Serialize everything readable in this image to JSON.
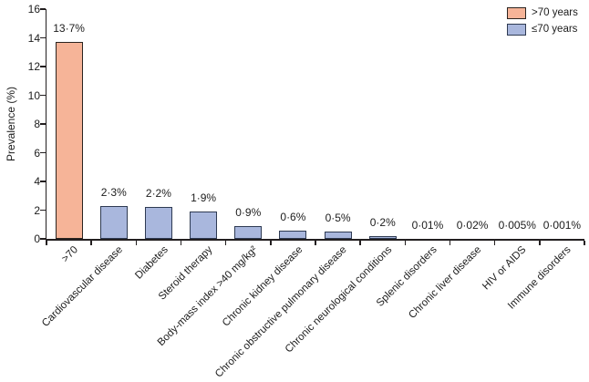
{
  "chart_data": {
    "type": "bar",
    "title": "",
    "xlabel": "",
    "ylabel": "Prevalence (%)",
    "ylim": [
      0,
      16
    ],
    "yticks": [
      0,
      2,
      4,
      6,
      8,
      10,
      12,
      14,
      16
    ],
    "grid": false,
    "legend_position": "top-right",
    "background": "#ffffff",
    "axis_color": "#231f20",
    "text_color": "#1c1c1c",
    "categories": [
      ">70",
      "Cardiovascular disease",
      "Diabetes",
      "Steroid therapy",
      "Body-mass index >40 mg/kg²",
      "Chronic kidney disease",
      "Chronic obstructive pulmonary disease",
      "Chronic neurological conditions",
      "Splenic disorders",
      "Chronic liver disease",
      "HIV or AIDS",
      "Immune disorders"
    ],
    "values": [
      13.7,
      2.3,
      2.2,
      1.9,
      0.9,
      0.6,
      0.5,
      0.2,
      0.01,
      0.02,
      0.005,
      0.001
    ],
    "bar_labels": [
      "13·7%",
      "2·3%",
      "2·2%",
      "1·9%",
      "0·9%",
      "0·6%",
      "0·5%",
      "0·2%",
      "0·01%",
      "0·02%",
      "0·005%",
      "0·001%"
    ],
    "series_index": [
      0,
      1,
      1,
      1,
      1,
      1,
      1,
      1,
      1,
      1,
      1,
      1
    ],
    "legend": [
      {
        "name": ">70 years",
        "fill": "#f6b498",
        "border": "#2b2420"
      },
      {
        "name": "≤70 years",
        "fill": "#a9b7dd",
        "border": "#2e3a52"
      }
    ]
  }
}
